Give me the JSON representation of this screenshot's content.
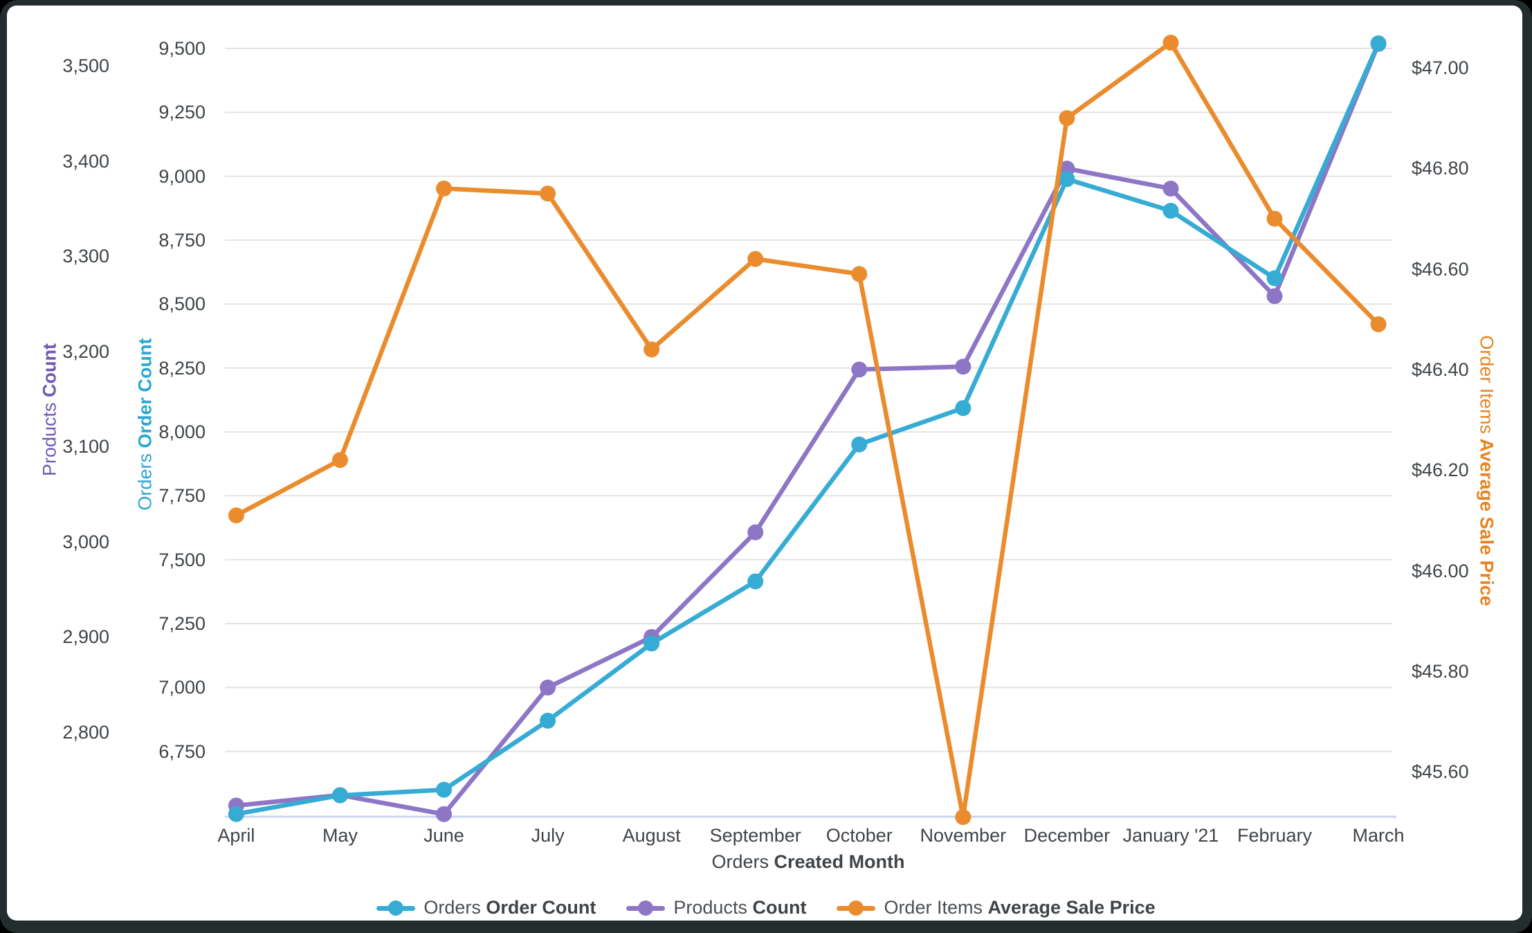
{
  "frame": {
    "page_background": "#000000",
    "frame_color": "#242d2e",
    "card_color": "#ffffff"
  },
  "chart_data": {
    "type": "line",
    "title": "",
    "categories": [
      "April",
      "May",
      "June",
      "July",
      "August",
      "September",
      "October",
      "November",
      "December",
      "January '21",
      "February",
      "March"
    ],
    "x_axis": {
      "title_prefix": "Orders",
      "title_bold": "Created Month"
    },
    "grid": true,
    "legend_position": "bottom",
    "series": [
      {
        "name_prefix": "Orders",
        "name_bold": "Order Count",
        "axis": "left_inner",
        "color": "#36acd4",
        "values": [
          6505,
          6578,
          6600,
          6870,
          7172,
          7415,
          7951,
          8093,
          8989,
          8865,
          8601,
          9520
        ]
      },
      {
        "name_prefix": "Products",
        "name_bold": "Count",
        "axis": "left_outer",
        "color": "#8d76c5",
        "values": [
          2723,
          2734,
          2714,
          2847,
          2900,
          3010,
          3181,
          3184,
          3392,
          3371,
          3258,
          3523
        ]
      },
      {
        "name_prefix": "Order Items",
        "name_bold": "Average Sale Price",
        "axis": "right",
        "color": "#ea8c2e",
        "values": [
          46.11,
          46.22,
          46.76,
          46.75,
          46.44,
          46.62,
          46.59,
          45.51,
          46.9,
          47.05,
          46.7,
          46.49
        ]
      }
    ],
    "axes": {
      "left_outer": {
        "title_prefix": "Products",
        "title_bold": "Count",
        "color": "#7159b1",
        "range": [
          2714,
          3525
        ],
        "ticks": [
          {
            "label": "3,500",
            "value": 3500
          },
          {
            "label": "3,400",
            "value": 3400
          },
          {
            "label": "3,300",
            "value": 3300
          },
          {
            "label": "3,200",
            "value": 3200
          },
          {
            "label": "3,100",
            "value": 3100
          },
          {
            "label": "3,000",
            "value": 3000
          },
          {
            "label": "2,900",
            "value": 2900
          },
          {
            "label": "2,800",
            "value": 2800
          }
        ]
      },
      "left_inner": {
        "title_prefix": "Orders",
        "title_bold": "Order Count",
        "color": "#2ba7d3",
        "range": [
          6500,
          9520
        ],
        "ticks": [
          {
            "label": "9,500",
            "value": 9500
          },
          {
            "label": "9,250",
            "value": 9250
          },
          {
            "label": "9,000",
            "value": 9000
          },
          {
            "label": "8,750",
            "value": 8750
          },
          {
            "label": "8,500",
            "value": 8500
          },
          {
            "label": "8,250",
            "value": 8250
          },
          {
            "label": "8,000",
            "value": 8000
          },
          {
            "label": "7,750",
            "value": 7750
          },
          {
            "label": "7,500",
            "value": 7500
          },
          {
            "label": "7,250",
            "value": 7250
          },
          {
            "label": "7,000",
            "value": 7000
          },
          {
            "label": "6,750",
            "value": 6750
          }
        ]
      },
      "right": {
        "title_prefix": "Order Items",
        "title_bold": "Average Sale Price",
        "color": "#e8831f",
        "range": [
          45.51,
          47.05
        ],
        "ticks": [
          {
            "label": "$47.00",
            "value": 47.0
          },
          {
            "label": "$46.80",
            "value": 46.8
          },
          {
            "label": "$46.60",
            "value": 46.6
          },
          {
            "label": "$46.40",
            "value": 46.4
          },
          {
            "label": "$46.20",
            "value": 46.2
          },
          {
            "label": "$46.00",
            "value": 46.0
          },
          {
            "label": "$45.80",
            "value": 45.8
          },
          {
            "label": "$45.60",
            "value": 45.6
          }
        ]
      }
    },
    "colors": {
      "gridline": "#e4e4e4",
      "baseline": "#c8d6ee",
      "tick_text": "#3f4448"
    }
  }
}
